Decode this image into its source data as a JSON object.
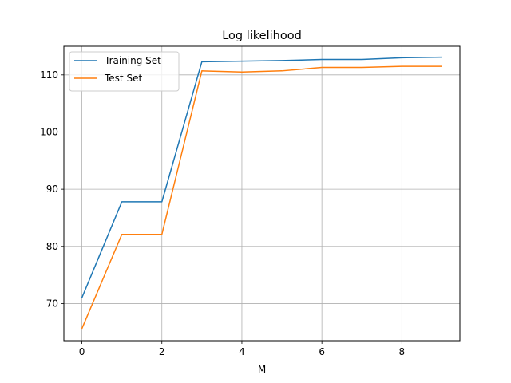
{
  "chart_data": {
    "type": "line",
    "title": "Log likelihood",
    "xlabel": "M",
    "ylabel": "",
    "x": [
      0,
      1,
      2,
      3,
      4,
      5,
      6,
      7,
      8,
      9
    ],
    "xlim": [
      -0.45,
      9.45
    ],
    "ylim": [
      63.5,
      115
    ],
    "xticks": [
      0,
      2,
      4,
      6,
      8
    ],
    "yticks": [
      70,
      80,
      90,
      100,
      110
    ],
    "grid": true,
    "legend": "top-left",
    "series": [
      {
        "name": "Training Set",
        "color": "#1f77b4",
        "values": [
          71.0,
          87.8,
          87.8,
          112.3,
          112.4,
          112.5,
          112.7,
          112.7,
          113.0,
          113.1
        ]
      },
      {
        "name": "Test Set",
        "color": "#ff7f0e",
        "values": [
          65.6,
          82.1,
          82.1,
          110.7,
          110.5,
          110.7,
          111.3,
          111.3,
          111.5,
          111.5
        ]
      }
    ]
  }
}
